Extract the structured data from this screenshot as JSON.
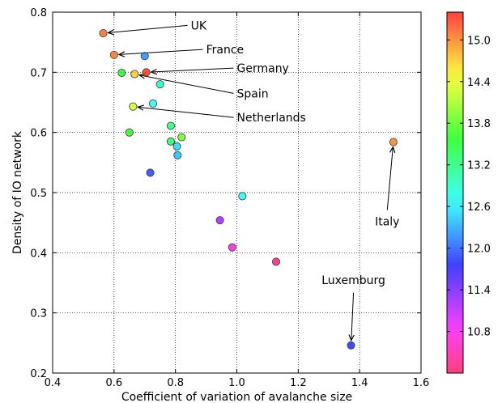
{
  "chart_data": {
    "type": "scatter",
    "xlabel": "Coefficient of variation of avalanche size",
    "ylabel": "Density of IO network",
    "xlim": [
      0.4,
      1.6
    ],
    "ylim": [
      0.2,
      0.8
    ],
    "xticks": [
      0.4,
      0.6,
      0.8,
      1.0,
      1.2,
      1.4,
      1.6
    ],
    "xtick_labels": [
      "0.4",
      "0.6",
      "0.8",
      "1.0",
      "1.2",
      "1.4",
      "1.6"
    ],
    "yticks": [
      0.2,
      0.3,
      0.4,
      0.5,
      0.6,
      0.7,
      0.8
    ],
    "ytick_labels": [
      "0.2",
      "0.3",
      "0.4",
      "0.5",
      "0.6",
      "0.7",
      "0.8"
    ],
    "grid": true,
    "colorbar": {
      "colormap": "hsv",
      "range": [
        10.2,
        15.4
      ],
      "ticks": [
        10.8,
        11.4,
        12.0,
        12.6,
        13.2,
        13.8,
        14.4,
        15.0
      ],
      "tick_labels": [
        "10.8",
        "11.4",
        "12.0",
        "12.6",
        "13.2",
        "13.8",
        "14.4",
        "15.0"
      ]
    },
    "points": [
      {
        "x": 0.565,
        "y": 0.765,
        "c": 15.1
      },
      {
        "x": 0.6,
        "y": 0.729,
        "c": 15.05
      },
      {
        "x": 0.7,
        "y": 0.727,
        "c": 12.2
      },
      {
        "x": 0.625,
        "y": 0.699,
        "c": 13.5
      },
      {
        "x": 0.705,
        "y": 0.7,
        "c": 15.3
      },
      {
        "x": 0.667,
        "y": 0.697,
        "c": 14.7
      },
      {
        "x": 0.75,
        "y": 0.68,
        "c": 12.9
      },
      {
        "x": 0.662,
        "y": 0.643,
        "c": 14.3
      },
      {
        "x": 0.727,
        "y": 0.648,
        "c": 12.7
      },
      {
        "x": 0.65,
        "y": 0.6,
        "c": 13.6
      },
      {
        "x": 0.785,
        "y": 0.611,
        "c": 13.2
      },
      {
        "x": 0.82,
        "y": 0.592,
        "c": 13.9
      },
      {
        "x": 0.785,
        "y": 0.585,
        "c": 13.3
      },
      {
        "x": 0.805,
        "y": 0.577,
        "c": 12.5
      },
      {
        "x": 0.807,
        "y": 0.562,
        "c": 12.4
      },
      {
        "x": 0.718,
        "y": 0.533,
        "c": 11.9
      },
      {
        "x": 1.018,
        "y": 0.494,
        "c": 12.7
      },
      {
        "x": 0.945,
        "y": 0.454,
        "c": 11.2
      },
      {
        "x": 0.985,
        "y": 0.409,
        "c": 10.7
      },
      {
        "x": 1.128,
        "y": 0.385,
        "c": 10.3
      },
      {
        "x": 1.51,
        "y": 0.584,
        "c": 15.0
      },
      {
        "x": 1.372,
        "y": 0.246,
        "c": 11.8
      }
    ],
    "annotations": [
      {
        "label": "UK",
        "point_x": 0.565,
        "point_y": 0.765,
        "text_x": 0.85,
        "text_y": 0.778
      },
      {
        "label": "France",
        "point_x": 0.6,
        "point_y": 0.729,
        "text_x": 0.9,
        "text_y": 0.738
      },
      {
        "label": "Germany",
        "point_x": 0.705,
        "point_y": 0.7,
        "text_x": 1.0,
        "text_y": 0.707
      },
      {
        "label": "Spain",
        "point_x": 0.667,
        "point_y": 0.697,
        "text_x": 1.0,
        "text_y": 0.665
      },
      {
        "label": "Netherlands",
        "point_x": 0.662,
        "point_y": 0.643,
        "text_x": 1.0,
        "text_y": 0.625
      },
      {
        "label": "Italy",
        "point_x": 1.51,
        "point_y": 0.584,
        "text_x": 1.49,
        "text_y": 0.452
      },
      {
        "label": "Luxemburg",
        "point_x": 1.372,
        "point_y": 0.246,
        "text_x": 1.38,
        "text_y": 0.355
      }
    ]
  }
}
